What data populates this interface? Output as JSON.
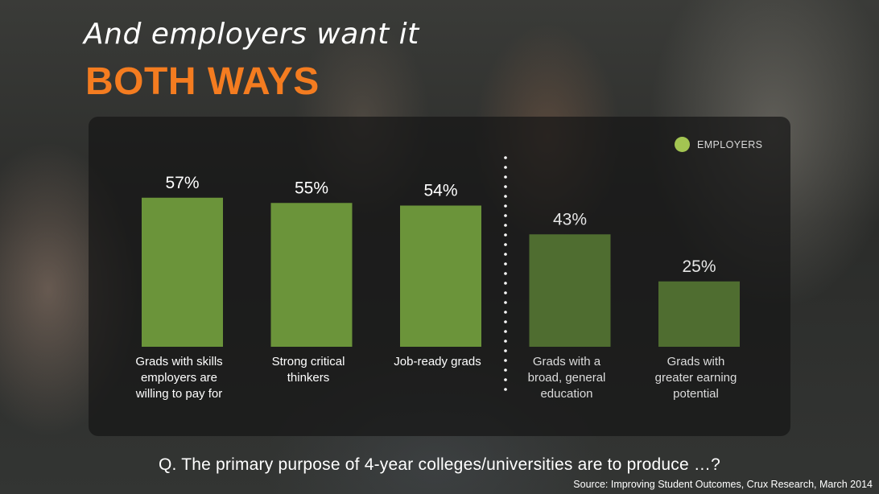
{
  "slide": {
    "title_line": "And employers want it",
    "title_accent": "BOTH WAYS",
    "question": "Q. The primary purpose of 4-year colleges/universities are to produce …?",
    "source": "Source: Improving Student Outcomes, Crux Research, March 2014"
  },
  "colors": {
    "accent_orange": "#f47c20",
    "bar_bright": "#6b943a",
    "bar_dim": "#4f6d30",
    "legend_green": "#a3c552"
  },
  "chart_data": {
    "type": "bar",
    "title": "",
    "categories": [
      "Grads with skills employers are willing to pay for",
      "Strong critical thinkers",
      "Job-ready grads",
      "Grads with a broad, general education",
      "Grads with greater earning potential"
    ],
    "category_lines": [
      [
        "Grads with skills",
        "employers are",
        "willing to pay for"
      ],
      [
        "Strong critical",
        "thinkers"
      ],
      [
        "Job-ready grads"
      ],
      [
        "Grads with a",
        "broad, general",
        "education"
      ],
      [
        "Grads with",
        "greater earning",
        "potential"
      ]
    ],
    "series": [
      {
        "name": "EMPLOYERS",
        "values": [
          57,
          55,
          54,
          43,
          25
        ]
      }
    ],
    "value_labels": [
      "57%",
      "55%",
      "54%",
      "43%",
      "25%"
    ],
    "ylim": [
      0,
      100
    ],
    "grid": false,
    "legend_position": "top-right",
    "divider_after_index": 2
  }
}
